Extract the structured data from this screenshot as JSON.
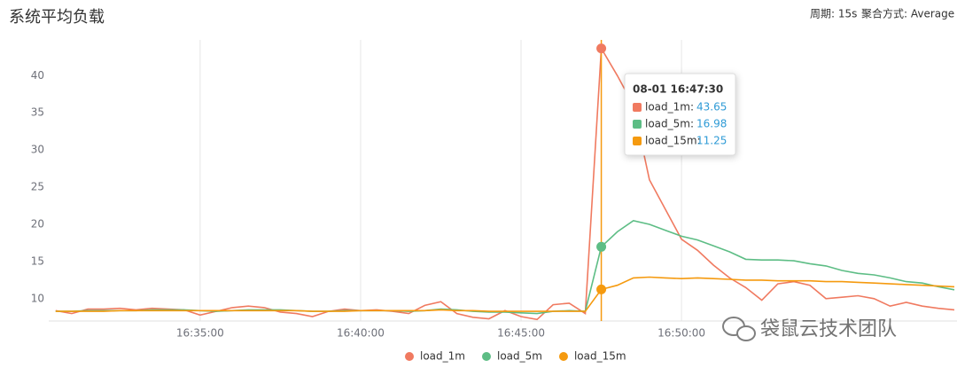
{
  "chart_data": {
    "type": "line",
    "title": "系统平均负载",
    "period": "周期: 15s",
    "aggregation": "聚合方式: Average",
    "x": [
      "16:30:30",
      "16:31:00",
      "16:31:30",
      "16:32:00",
      "16:32:30",
      "16:33:00",
      "16:33:30",
      "16:34:00",
      "16:34:30",
      "16:35:00",
      "16:35:30",
      "16:36:00",
      "16:36:30",
      "16:37:00",
      "16:37:30",
      "16:38:00",
      "16:38:30",
      "16:39:00",
      "16:39:30",
      "16:40:00",
      "16:40:30",
      "16:41:00",
      "16:41:30",
      "16:42:00",
      "16:42:30",
      "16:43:00",
      "16:43:30",
      "16:44:00",
      "16:44:30",
      "16:45:00",
      "16:45:30",
      "16:46:00",
      "16:46:30",
      "16:47:00",
      "16:47:30",
      "16:48:00",
      "16:48:30",
      "16:49:00",
      "16:49:30",
      "16:50:00",
      "16:50:30",
      "16:51:00",
      "16:51:30",
      "16:52:00",
      "16:52:30",
      "16:53:00",
      "16:53:30",
      "16:54:00",
      "16:54:30",
      "16:55:00",
      "16:55:30",
      "16:56:00",
      "16:56:30",
      "16:57:00",
      "16:57:30",
      "16:58:00",
      "16:58:30"
    ],
    "series": [
      {
        "name": "load_1m",
        "color": "#f07a60",
        "values": [
          8.4,
          8.0,
          8.6,
          8.6,
          8.7,
          8.5,
          8.7,
          8.6,
          8.5,
          7.8,
          8.3,
          8.8,
          9.0,
          8.8,
          8.2,
          8.0,
          7.6,
          8.3,
          8.6,
          8.4,
          8.5,
          8.3,
          8.0,
          9.1,
          9.6,
          8.0,
          7.5,
          7.3,
          8.4,
          7.6,
          7.2,
          9.2,
          9.4,
          8.0,
          43.65,
          40.0,
          36.0,
          26.0,
          22.0,
          18.0,
          16.5,
          14.5,
          12.8,
          11.5,
          9.8,
          12.0,
          12.3,
          11.8,
          10.0,
          10.2,
          10.4,
          10.0,
          9.0,
          9.5,
          9.0,
          8.7,
          8.5
        ]
      },
      {
        "name": "load_5m",
        "color": "#5dbd85",
        "values": [
          8.3,
          8.3,
          8.4,
          8.4,
          8.4,
          8.4,
          8.5,
          8.5,
          8.5,
          8.4,
          8.3,
          8.4,
          8.5,
          8.5,
          8.5,
          8.4,
          8.3,
          8.3,
          8.4,
          8.4,
          8.4,
          8.4,
          8.3,
          8.4,
          8.6,
          8.5,
          8.3,
          8.2,
          8.2,
          8.1,
          8.0,
          8.3,
          8.4,
          8.3,
          16.98,
          19.0,
          20.5,
          20.0,
          19.2,
          18.4,
          17.9,
          17.1,
          16.3,
          15.3,
          15.2,
          15.2,
          15.1,
          14.7,
          14.4,
          13.8,
          13.4,
          13.2,
          12.8,
          12.3,
          12.1,
          11.6,
          11.2
        ]
      },
      {
        "name": "load_15m",
        "color": "#f59a0f",
        "values": [
          8.3,
          8.3,
          8.3,
          8.3,
          8.4,
          8.4,
          8.4,
          8.4,
          8.4,
          8.4,
          8.4,
          8.4,
          8.4,
          8.4,
          8.4,
          8.4,
          8.3,
          8.3,
          8.3,
          8.4,
          8.4,
          8.4,
          8.4,
          8.4,
          8.5,
          8.4,
          8.4,
          8.3,
          8.3,
          8.3,
          8.3,
          8.3,
          8.3,
          8.3,
          11.25,
          11.8,
          12.8,
          12.9,
          12.8,
          12.7,
          12.8,
          12.7,
          12.6,
          12.5,
          12.5,
          12.4,
          12.4,
          12.4,
          12.3,
          12.3,
          12.2,
          12.1,
          12.0,
          11.9,
          11.8,
          11.7,
          11.6
        ]
      }
    ],
    "xlim": [
      "16:30:17",
      "16:58:35"
    ],
    "xticks": [
      "16:35:00",
      "16:40:00",
      "16:45:00",
      "16:50:00"
    ],
    "ylim": [
      7,
      44.8
    ],
    "yticks": [
      10,
      15,
      20,
      25,
      30,
      35,
      40
    ],
    "grid": true,
    "legend": "bottom",
    "tooltip": {
      "title": "08-01 16:47:30",
      "rows": [
        {
          "label": "load_1m:",
          "value": 43.65
        },
        {
          "label": "load_5m:",
          "value": 16.98
        },
        {
          "label": "load_15m:",
          "value": 11.25
        }
      ]
    },
    "watermark": "袋鼠云技术团队"
  }
}
